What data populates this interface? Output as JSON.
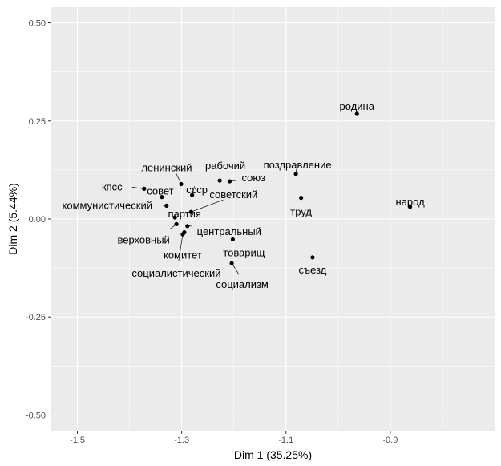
{
  "chart_data": {
    "type": "scatter",
    "title": "",
    "xlabel": "Dim 1 (35.25%)",
    "ylabel": "Dim 2 (5.44%)",
    "xlim": [
      -1.55,
      -0.7
    ],
    "ylim": [
      -0.54,
      0.54
    ],
    "xticks": [
      -1.5,
      -1.3,
      -1.1,
      -0.9
    ],
    "xtick_labels": [
      "-1.5",
      "-1.3",
      "-1.1",
      "-0.9"
    ],
    "yticks": [
      -0.5,
      -0.25,
      0.0,
      0.25,
      0.5
    ],
    "ytick_labels": [
      "-0.50",
      "-0.25",
      "0.00",
      "0.25",
      "0.50"
    ],
    "grid": true,
    "legend": "none",
    "colors": {
      "panel": "#ebebeb",
      "grid": "#ffffff",
      "point": "#000000",
      "text": "#000000",
      "tick_text": "#4d4d4d"
    },
    "points": [
      {
        "label": "родина",
        "x": -0.964,
        "y": 0.268
      },
      {
        "label": "народ",
        "x": -0.862,
        "y": 0.031
      },
      {
        "label": "поздравление",
        "x": -1.081,
        "y": 0.115
      },
      {
        "label": "труд",
        "x": -1.071,
        "y": 0.054
      },
      {
        "label": "съезд",
        "x": -1.049,
        "y": -0.098
      },
      {
        "label": "рабочий",
        "x": -1.227,
        "y": 0.098
      },
      {
        "label": "союз",
        "x": -1.208,
        "y": 0.096
      },
      {
        "label": "ленинский",
        "x": -1.301,
        "y": 0.089
      },
      {
        "label": "ссср",
        "x": -1.28,
        "y": 0.061
      },
      {
        "label": "советский",
        "x": -1.282,
        "y": 0.018
      },
      {
        "label": "кпсс",
        "x": -1.372,
        "y": 0.077
      },
      {
        "label": "совет",
        "x": -1.338,
        "y": 0.056
      },
      {
        "label": "коммунистический",
        "x": -1.329,
        "y": 0.034
      },
      {
        "label": "партия",
        "x": -1.313,
        "y": 0.004
      },
      {
        "label": "верховный",
        "x": -1.31,
        "y": -0.013
      },
      {
        "label": "центральный",
        "x": -1.289,
        "y": -0.018
      },
      {
        "label": "комитет",
        "x": -1.295,
        "y": -0.034
      },
      {
        "label": "социалистический",
        "x": -1.298,
        "y": -0.039
      },
      {
        "label": "товарищ",
        "x": -1.202,
        "y": -0.052
      },
      {
        "label": "социализм",
        "x": -1.204,
        "y": -0.113
      }
    ]
  }
}
